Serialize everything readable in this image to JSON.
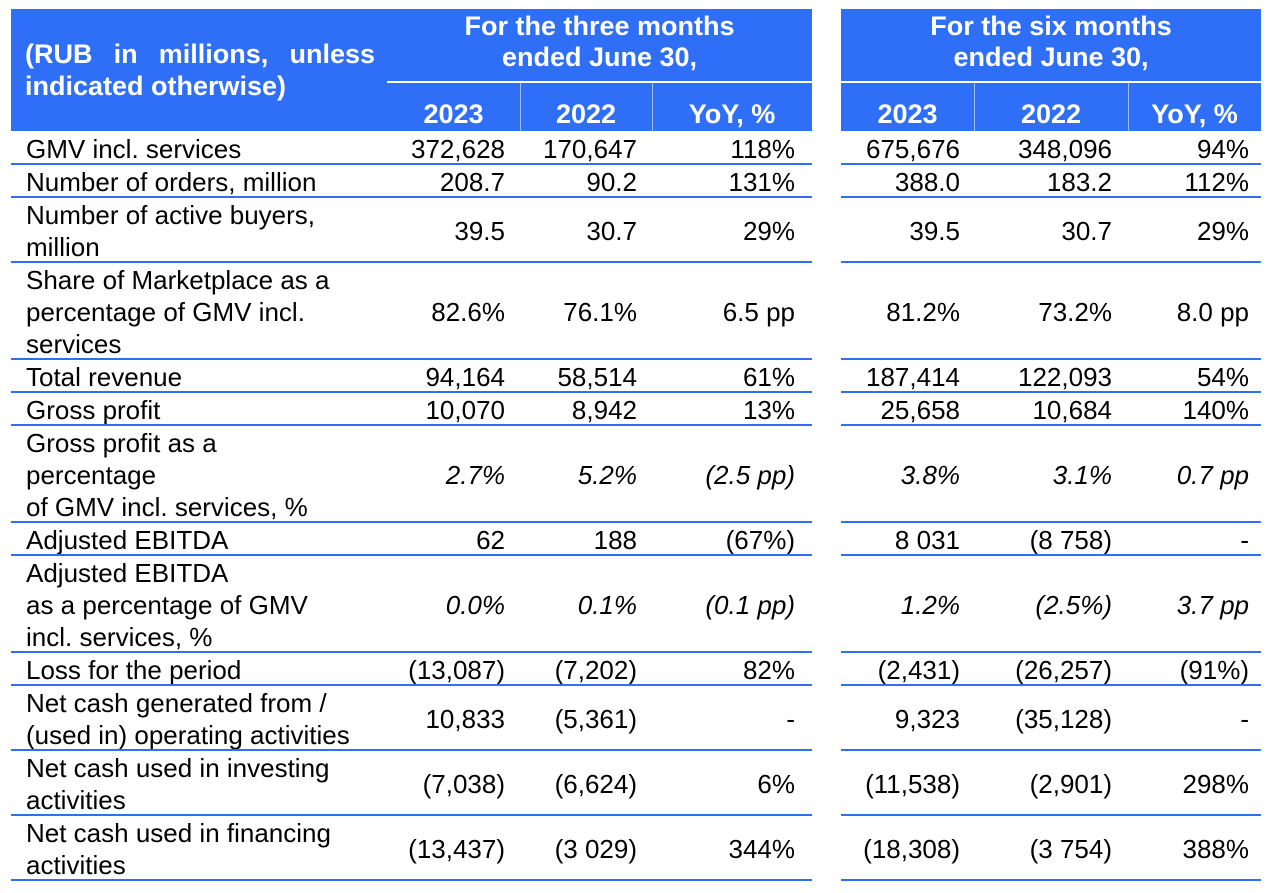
{
  "header": {
    "units_label": "(RUB in millions, unless indicated otherwise)",
    "groups": [
      {
        "title_line1": "For the three months",
        "title_line2": "ended June 30,",
        "cols": [
          "2023",
          "2022",
          "YoY, %"
        ]
      },
      {
        "title_line1": "For the six months",
        "title_line2": "ended June 30,",
        "cols": [
          "2023",
          "2022",
          "YoY, %"
        ]
      }
    ]
  },
  "rows": [
    {
      "label": [
        "GMV incl. services"
      ],
      "italic": false,
      "values": [
        "372,628",
        "170,647",
        "118%",
        "675,676",
        "348,096",
        "94%"
      ]
    },
    {
      "label": [
        "Number of orders, million"
      ],
      "italic": false,
      "values": [
        "208.7",
        "90.2",
        "131%",
        "388.0",
        "183.2",
        "112%"
      ]
    },
    {
      "label": [
        "Number of active buyers,",
        "million"
      ],
      "italic": false,
      "values": [
        "39.5",
        "30.7",
        "29%",
        "39.5",
        "30.7",
        "29%"
      ]
    },
    {
      "label": [
        "Share of Marketplace as a",
        "percentage of GMV incl.",
        "services"
      ],
      "italic": false,
      "values": [
        "82.6%",
        "76.1%",
        "6.5 pp",
        "81.2%",
        "73.2%",
        "8.0 pp"
      ]
    },
    {
      "label": [
        "Total revenue"
      ],
      "italic": false,
      "values": [
        "94,164",
        "58,514",
        "61%",
        "187,414",
        "122,093",
        "54%"
      ]
    },
    {
      "label": [
        "Gross profit"
      ],
      "italic": false,
      "values": [
        "10,070",
        "8,942",
        "13%",
        "25,658",
        "10,684",
        "140%"
      ]
    },
    {
      "label": [
        "Gross profit as a",
        "percentage",
        "of GMV incl. services, %"
      ],
      "italic": true,
      "values": [
        "2.7%",
        "5.2%",
        "(2.5 pp)",
        "3.8%",
        "3.1%",
        "0.7 pp"
      ]
    },
    {
      "label": [
        "Adjusted EBITDA"
      ],
      "italic": false,
      "values": [
        "62",
        "188",
        "(67%)",
        "8 031",
        "(8 758)",
        "-"
      ]
    },
    {
      "label": [
        "Adjusted EBITDA",
        "as a percentage of GMV",
        "incl. services, %"
      ],
      "italic": true,
      "values": [
        "0.0%",
        "0.1%",
        "(0.1 pp)",
        "1.2%",
        "(2.5%)",
        "3.7 pp"
      ]
    },
    {
      "label": [
        "Loss for the period"
      ],
      "italic": false,
      "values": [
        "(13,087)",
        "(7,202)",
        "82%",
        "(2,431)",
        "(26,257)",
        "(91%)"
      ]
    },
    {
      "label": [
        "Net cash generated from /",
        "(used in) operating activities"
      ],
      "italic": false,
      "values": [
        "10,833",
        "(5,361)",
        "-",
        "9,323",
        "(35,128)",
        "-"
      ]
    },
    {
      "label": [
        "Net cash used in investing",
        "activities"
      ],
      "italic": false,
      "values": [
        "(7,038)",
        "(6,624)",
        "6%",
        "(11,538)",
        "(2,901)",
        "298%"
      ]
    },
    {
      "label": [
        "Net cash used in financing",
        "activities"
      ],
      "italic": false,
      "values": [
        "(13,437)",
        "(3 029)",
        "344%",
        "(18,308)",
        "(3 754)",
        "388%"
      ]
    }
  ]
}
